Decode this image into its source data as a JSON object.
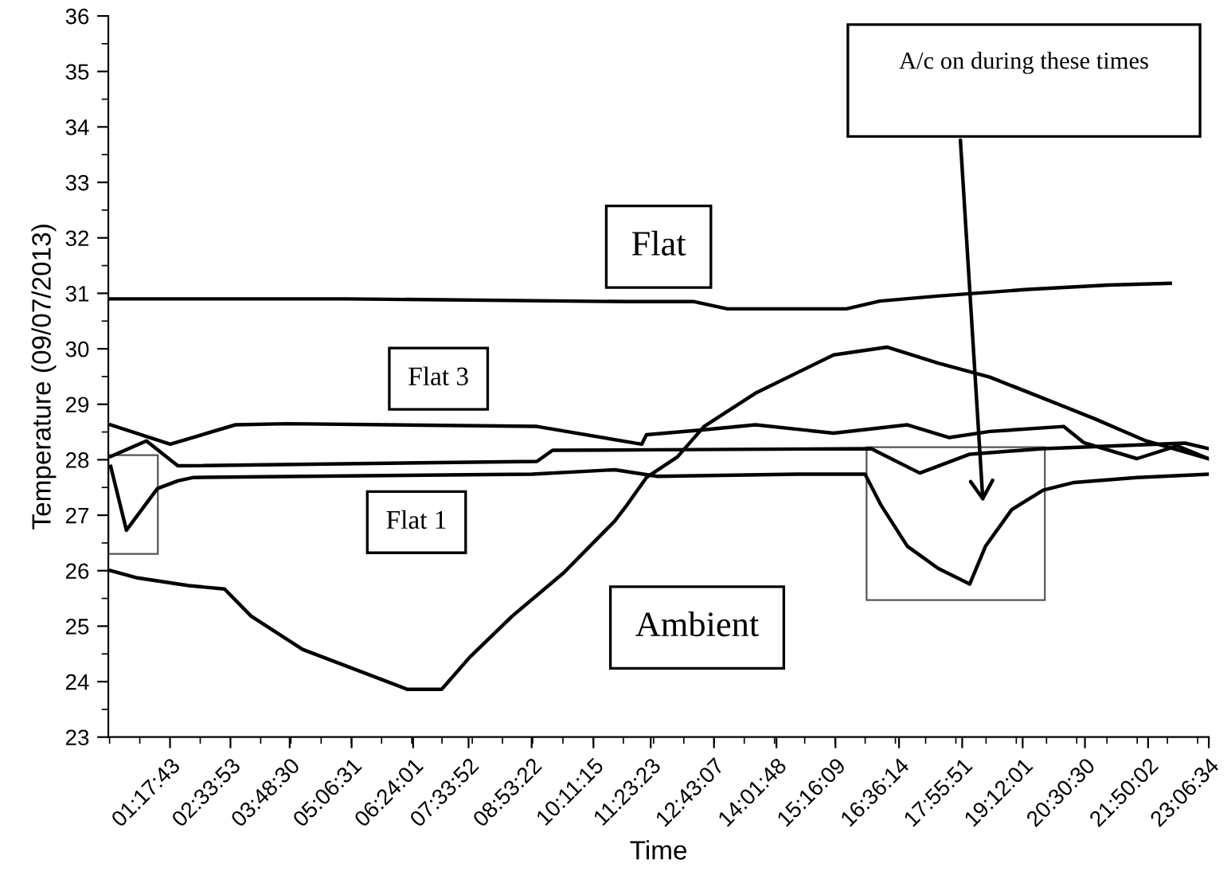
{
  "chart_data": {
    "type": "line",
    "xlabel": "Time",
    "ylabel": "Temperature (09/07/2013)",
    "xlim": [
      0,
      23.11
    ],
    "ylim": [
      23,
      36
    ],
    "xticks": [
      {
        "value": 1.2953,
        "label": "01:17:43"
      },
      {
        "value": 2.5647,
        "label": "02:33:53"
      },
      {
        "value": 3.8083,
        "label": "03:48:30"
      },
      {
        "value": 5.1086,
        "label": "05:06:31"
      },
      {
        "value": 6.4003,
        "label": "06:24:01"
      },
      {
        "value": 7.5644,
        "label": "07:33:52"
      },
      {
        "value": 8.8894,
        "label": "08:53:22"
      },
      {
        "value": 10.1875,
        "label": "10:11:15"
      },
      {
        "value": 11.3897,
        "label": "11:23:23"
      },
      {
        "value": 12.7186,
        "label": "12:43:07"
      },
      {
        "value": 14.03,
        "label": "14:01:48"
      },
      {
        "value": 15.2692,
        "label": "15:16:09"
      },
      {
        "value": 16.6039,
        "label": "16:36:14"
      },
      {
        "value": 17.9308,
        "label": "17:55:51"
      },
      {
        "value": 19.2003,
        "label": "19:12:01"
      },
      {
        "value": 20.5083,
        "label": "20:30:30"
      },
      {
        "value": 21.8339,
        "label": "21:50:02"
      },
      {
        "value": 23.1094,
        "label": "23:06:34"
      }
    ],
    "yticks": [
      23,
      24,
      25,
      26,
      27,
      28,
      29,
      30,
      31,
      32,
      33,
      34,
      35,
      36
    ],
    "grid": false,
    "legend": false,
    "marker": "none",
    "line_style": "solid",
    "annotations": [
      "A/c on during these times"
    ],
    "series": [
      {
        "name": "Flat",
        "color": "#000000",
        "x": [
          0.05,
          5.0,
          10.9,
          12.3,
          13.0,
          15.5,
          16.2,
          17.4,
          19.3,
          21.0,
          22.3
        ],
        "values": [
          30.9,
          30.9,
          30.85,
          30.85,
          30.72,
          30.72,
          30.86,
          30.95,
          31.07,
          31.15,
          31.18
        ]
      },
      {
        "name": "Flat 3",
        "color": "#000000",
        "x": [
          0.05,
          1.3,
          2.67,
          3.76,
          9.0,
          11.2,
          11.3,
          12.51,
          13.59,
          15.23,
          16.78,
          17.66,
          18.51,
          20.06,
          20.48,
          21.6,
          22.45,
          23.1
        ],
        "values": [
          28.63,
          28.28,
          28.63,
          28.65,
          28.6,
          28.28,
          28.45,
          28.54,
          28.63,
          28.48,
          28.63,
          28.4,
          28.51,
          28.6,
          28.31,
          28.02,
          28.25,
          28.02
        ]
      },
      {
        "color": "#000000",
        "x": [
          0.05,
          0.8,
          1.46,
          9.0,
          9.33,
          11.53,
          16.02,
          17.04,
          18.09,
          19.63,
          22.61,
          23.1
        ],
        "values": [
          28.06,
          28.34,
          27.89,
          27.97,
          28.17,
          28.18,
          28.2,
          27.76,
          28.1,
          28.2,
          28.3,
          28.2
        ]
      },
      {
        "name": "Flat 1",
        "color": "#000000",
        "x": [
          0.05,
          0.38,
          1.03,
          1.46,
          1.79,
          8.9,
          10.64,
          11.53,
          14.48,
          15.89,
          16.22,
          16.78,
          17.43,
          18.09,
          18.42,
          18.97,
          19.63,
          20.28,
          21.6,
          23.1
        ],
        "values": [
          27.88,
          26.73,
          27.48,
          27.62,
          27.68,
          27.74,
          27.82,
          27.7,
          27.74,
          27.74,
          27.19,
          26.44,
          26.04,
          25.76,
          26.44,
          27.1,
          27.45,
          27.59,
          27.68,
          27.74
        ]
      },
      {
        "name": "Ambient",
        "color": "#000000",
        "x": [
          0.05,
          0.61,
          1.69,
          2.44,
          3.0,
          4.08,
          4.97,
          6.28,
          7.0,
          7.59,
          8.48,
          9.56,
          10.64,
          10.87,
          11.3,
          11.95,
          12.51,
          13.59,
          15.23,
          16.35,
          17.43,
          18.51,
          19.63,
          20.71,
          21.79,
          23.1
        ],
        "values": [
          26.0,
          25.87,
          25.73,
          25.67,
          25.18,
          24.58,
          24.29,
          23.86,
          23.86,
          24.44,
          25.18,
          25.96,
          26.9,
          27.16,
          27.68,
          28.05,
          28.6,
          29.2,
          29.89,
          30.03,
          29.74,
          29.49,
          29.11,
          28.74,
          28.34,
          28.02
        ]
      }
    ]
  }
}
